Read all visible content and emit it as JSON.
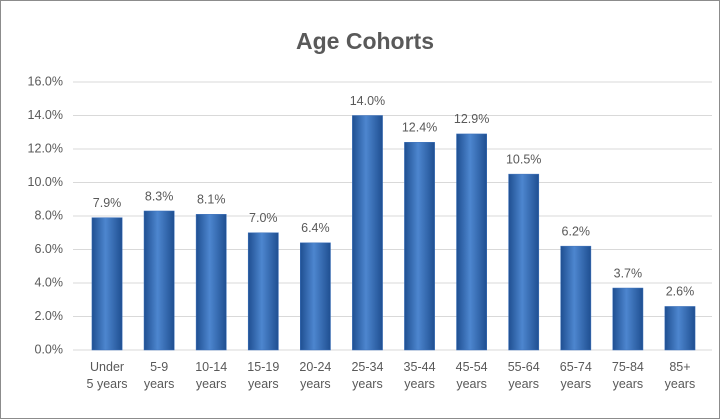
{
  "chart_data": {
    "type": "bar",
    "title": "Age Cohorts",
    "categories": [
      "Under\n5 years",
      "5-9\nyears",
      "10-14\nyears",
      "15-19\nyears",
      "20-24\nyears",
      "25-34\nyears",
      "35-44\nyears",
      "45-54\nyears",
      "55-64\nyears",
      "65-74\nyears",
      "75-84\nyears",
      "85+\nyears"
    ],
    "values": [
      7.9,
      8.3,
      8.1,
      7.0,
      6.4,
      14.0,
      12.4,
      12.9,
      10.5,
      6.2,
      3.7,
      2.6
    ],
    "value_labels": [
      "7.9%",
      "8.3%",
      "8.1%",
      "7.0%",
      "6.4%",
      "14.0%",
      "12.4%",
      "12.9%",
      "10.5%",
      "6.2%",
      "3.7%",
      "2.6%"
    ],
    "color": "#3a6fba",
    "ylim": [
      0,
      16
    ],
    "yticks": [
      {
        "value": 0,
        "label": "0.0%"
      },
      {
        "value": 2,
        "label": "2.0%"
      },
      {
        "value": 4,
        "label": "4.0%"
      },
      {
        "value": 6,
        "label": "6.0%"
      },
      {
        "value": 8,
        "label": "8.0%"
      },
      {
        "value": 10,
        "label": "10.0%"
      },
      {
        "value": 12,
        "label": "12.0%"
      },
      {
        "value": 14,
        "label": "14.0%"
      },
      {
        "value": 16,
        "label": "16.0%"
      }
    ],
    "grid": true
  }
}
